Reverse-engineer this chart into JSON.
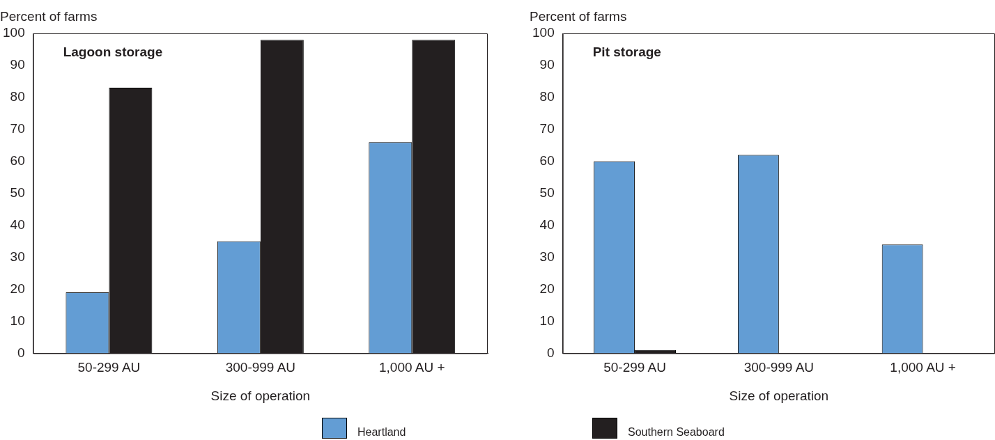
{
  "chart_data": [
    {
      "type": "bar",
      "title": "Lagoon storage",
      "xlabel": "Size of operation",
      "ylabel": "Percent of farms",
      "categories": [
        "50-299 AU",
        "300-999 AU",
        "1,000 AU +"
      ],
      "series": [
        {
          "name": "Heartland",
          "color": "#639dd4",
          "values": [
            19,
            35,
            66
          ]
        },
        {
          "name": "Southern Seaboard",
          "color": "#231f20",
          "values": [
            83,
            98,
            98
          ]
        }
      ],
      "ylim": [
        0,
        100
      ],
      "yticks": [
        0,
        10,
        20,
        30,
        40,
        50,
        60,
        70,
        80,
        90,
        100
      ],
      "grid": false,
      "legend": "bottom"
    },
    {
      "type": "bar",
      "title": "Pit storage",
      "xlabel": "Size of operation",
      "ylabel": "Percent of farms",
      "categories": [
        "50-299 AU",
        "300-999 AU",
        "1,000 AU +"
      ],
      "series": [
        {
          "color": "#639dd4",
          "values": [
            60,
            62,
            34
          ]
        },
        {
          "color": "#231f20",
          "values": [
            1,
            0,
            0
          ]
        }
      ],
      "ylim": [
        0,
        100
      ],
      "yticks": [
        0,
        10,
        20,
        30,
        40,
        50,
        60,
        70,
        80,
        90,
        100
      ],
      "grid": false
    }
  ]
}
